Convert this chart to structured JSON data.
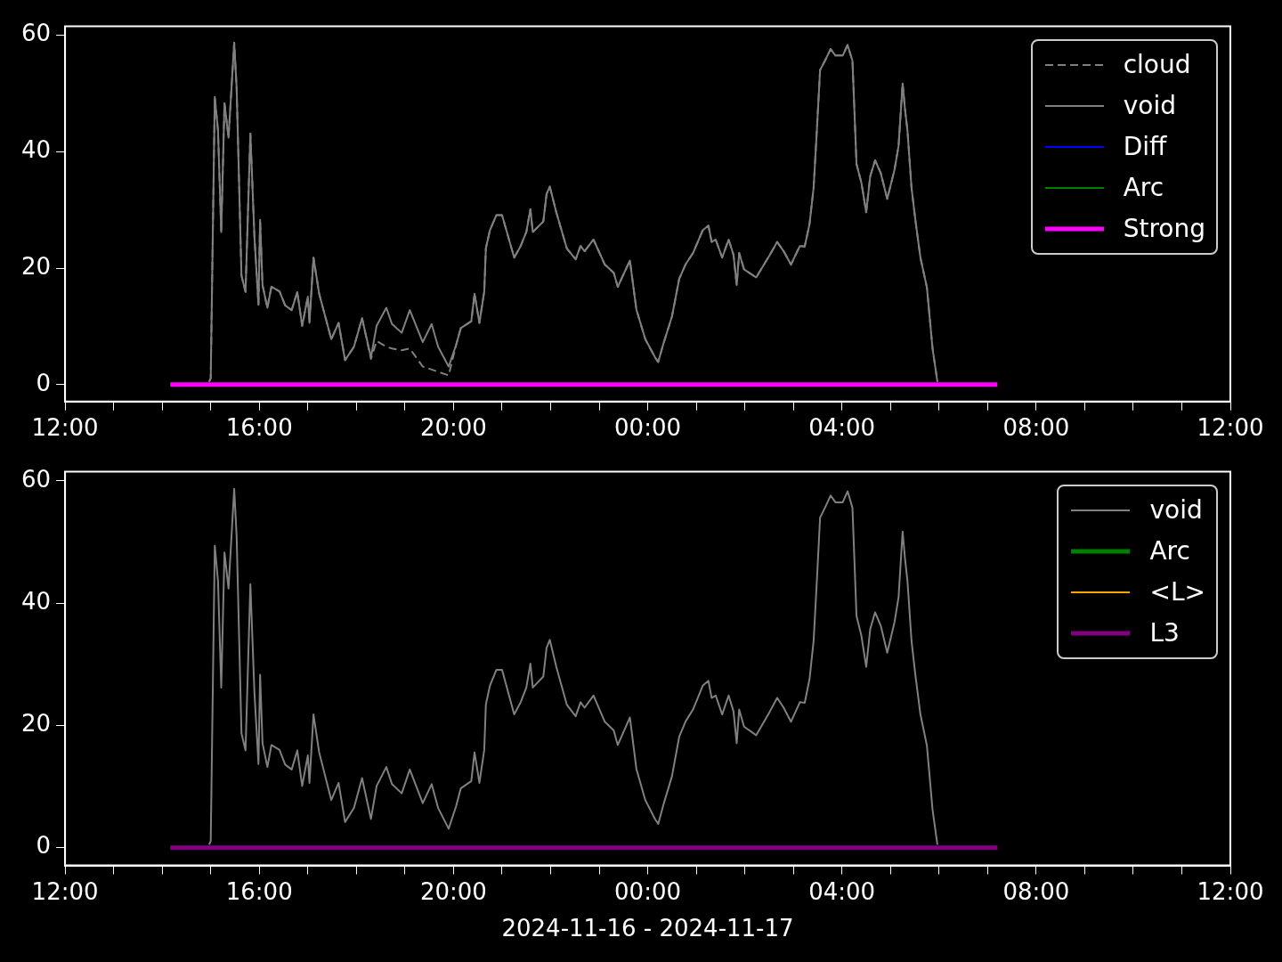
{
  "chart_data": [
    {
      "type": "line",
      "legend": "top right",
      "grid": false,
      "marker": "none",
      "xlim": [
        "2024-11-16T12:00",
        "2024-11-17T12:00"
      ],
      "xticks": [
        {
          "value": "2024-11-16T12:00",
          "label": "12:00"
        },
        {
          "value": "2024-11-16T13:00",
          "label": null
        },
        {
          "value": "2024-11-16T14:00",
          "label": null
        },
        {
          "value": "2024-11-16T15:00",
          "label": null
        },
        {
          "value": "2024-11-16T16:00",
          "label": "16:00"
        },
        {
          "value": "2024-11-16T17:00",
          "label": null
        },
        {
          "value": "2024-11-16T18:00",
          "label": null
        },
        {
          "value": "2024-11-16T19:00",
          "label": null
        },
        {
          "value": "2024-11-16T20:00",
          "label": "20:00"
        },
        {
          "value": "2024-11-16T21:00",
          "label": null
        },
        {
          "value": "2024-11-16T22:00",
          "label": null
        },
        {
          "value": "2024-11-16T23:00",
          "label": null
        },
        {
          "value": "2024-11-17T00:00",
          "label": "00:00"
        },
        {
          "value": "2024-11-17T01:00",
          "label": null
        },
        {
          "value": "2024-11-17T02:00",
          "label": null
        },
        {
          "value": "2024-11-17T03:00",
          "label": null
        },
        {
          "value": "2024-11-17T04:00",
          "label": "04:00"
        },
        {
          "value": "2024-11-17T05:00",
          "label": null
        },
        {
          "value": "2024-11-17T06:00",
          "label": null
        },
        {
          "value": "2024-11-17T07:00",
          "label": null
        },
        {
          "value": "2024-11-17T08:00",
          "label": "08:00"
        },
        {
          "value": "2024-11-17T09:00",
          "label": null
        },
        {
          "value": "2024-11-17T10:00",
          "label": null
        },
        {
          "value": "2024-11-17T11:00",
          "label": null
        },
        {
          "value": "2024-11-17T12:00",
          "label": "12:00"
        }
      ],
      "ylim": [
        -2.9,
        61.5
      ],
      "yticks": [
        0,
        20,
        40,
        60
      ],
      "x": [
        "2024-11-16T14:58",
        "2024-11-16T15:00",
        "2024-11-16T15:05",
        "2024-11-16T15:09",
        "2024-11-16T15:13",
        "2024-11-16T15:17",
        "2024-11-16T15:22",
        "2024-11-16T15:29",
        "2024-11-16T15:32",
        "2024-11-16T15:38",
        "2024-11-16T15:43",
        "2024-11-16T15:49",
        "2024-11-16T15:54",
        "2024-11-16T15:59",
        "2024-11-16T16:01",
        "2024-11-16T16:04",
        "2024-11-16T16:10",
        "2024-11-16T16:15",
        "2024-11-16T16:25",
        "2024-11-16T16:32",
        "2024-11-16T16:40",
        "2024-11-16T16:47",
        "2024-11-16T16:53",
        "2024-11-16T17:00",
        "2024-11-16T17:02",
        "2024-11-16T17:07",
        "2024-11-16T17:14",
        "2024-11-16T17:29",
        "2024-11-16T17:38",
        "2024-11-16T17:46",
        "2024-11-16T17:57",
        "2024-11-16T18:07",
        "2024-11-16T18:18",
        "2024-11-16T18:25",
        "2024-11-16T18:37",
        "2024-11-16T18:44",
        "2024-11-16T18:56",
        "2024-11-16T19:06",
        "2024-11-16T19:22",
        "2024-11-16T19:33",
        "2024-11-16T19:41",
        "2024-11-16T19:54",
        "2024-11-16T20:03",
        "2024-11-16T20:09",
        "2024-11-16T20:22",
        "2024-11-16T20:26",
        "2024-11-16T20:32",
        "2024-11-16T20:38",
        "2024-11-16T20:40",
        "2024-11-16T20:45",
        "2024-11-16T20:53",
        "2024-11-16T21:00",
        "2024-11-16T21:15",
        "2024-11-16T21:23",
        "2024-11-16T21:30",
        "2024-11-16T21:35",
        "2024-11-16T21:38",
        "2024-11-16T21:51",
        "2024-11-16T21:55",
        "2024-11-16T21:59",
        "2024-11-16T22:07",
        "2024-11-16T22:20",
        "2024-11-16T22:31",
        "2024-11-16T22:37",
        "2024-11-16T22:42",
        "2024-11-16T22:53",
        "2024-11-16T23:07",
        "2024-11-16T23:18",
        "2024-11-16T23:23",
        "2024-11-16T23:31",
        "2024-11-16T23:38",
        "2024-11-16T23:46",
        "2024-11-16T23:57",
        "2024-11-17T00:09",
        "2024-11-17T00:13",
        "2024-11-17T00:20",
        "2024-11-17T00:30",
        "2024-11-17T00:39",
        "2024-11-17T00:47",
        "2024-11-17T00:56",
        "2024-11-17T01:08",
        "2024-11-17T01:15",
        "2024-11-17T01:19",
        "2024-11-17T01:24",
        "2024-11-17T01:32",
        "2024-11-17T01:40",
        "2024-11-17T01:46",
        "2024-11-17T01:50",
        "2024-11-17T01:53",
        "2024-11-17T01:59",
        "2024-11-17T02:14",
        "2024-11-17T02:31",
        "2024-11-17T02:40",
        "2024-11-17T02:48",
        "2024-11-17T02:57",
        "2024-11-17T03:08",
        "2024-11-17T03:14",
        "2024-11-17T03:20",
        "2024-11-17T03:25",
        "2024-11-17T03:29",
        "2024-11-17T03:33",
        "2024-11-17T03:39",
        "2024-11-17T03:46",
        "2024-11-17T03:52",
        "2024-11-17T04:01",
        "2024-11-17T04:07",
        "2024-11-17T04:13",
        "2024-11-17T04:18",
        "2024-11-17T04:24",
        "2024-11-17T04:30",
        "2024-11-17T04:35",
        "2024-11-17T04:41",
        "2024-11-17T04:48",
        "2024-11-17T04:56",
        "2024-11-17T05:05",
        "2024-11-17T05:10",
        "2024-11-17T05:15",
        "2024-11-17T05:18",
        "2024-11-17T05:21",
        "2024-11-17T05:26",
        "2024-11-17T05:31",
        "2024-11-17T05:37",
        "2024-11-17T05:45",
        "2024-11-17T05:52",
        "2024-11-17T05:58"
      ],
      "series": [
        {
          "name": "cloud",
          "color": "#808080",
          "line_style": "dashed",
          "values": [
            0.5,
            1.1,
            49.4,
            43.6,
            26.2,
            48.3,
            42.4,
            58.7,
            51,
            18.7,
            15.9,
            43.1,
            25.4,
            13.7,
            28.3,
            17.1,
            13.2,
            16.8,
            16,
            13.6,
            12.8,
            15.9,
            10.1,
            15.1,
            10.6,
            21.8,
            15.6,
            7.8,
            10.6,
            4.2,
            6.5,
            11.4,
            4.4,
            7.5,
            6.5,
            6.2,
            5.9,
            6.2,
            3.1,
            2.6,
            2.2,
            1.6,
            6.7,
            9.7,
            10.9,
            15.6,
            10.6,
            16,
            23.4,
            26.5,
            29.1,
            29.1,
            21.8,
            23.8,
            26.2,
            30.1,
            26.2,
            28,
            32.7,
            34,
            29.6,
            23.4,
            21.5,
            23.8,
            22.9,
            24.9,
            20.6,
            19.2,
            16.8,
            19.2,
            21.3,
            12.9,
            7.8,
            4.7,
            3.9,
            7.3,
            11.7,
            18.2,
            20.7,
            22.6,
            26.5,
            27.3,
            24.5,
            24.9,
            21.8,
            24.9,
            22.3,
            17.1,
            22.6,
            19.8,
            18.4,
            22.3,
            24.5,
            22.9,
            20.6,
            23.8,
            23.7,
            27.6,
            33.8,
            43.6,
            54,
            55.6,
            57.6,
            56.5,
            56.5,
            58.3,
            55.6,
            37.9,
            34.7,
            29.6,
            35.8,
            38.5,
            36.3,
            31.9,
            36.9,
            41,
            51.7,
            47.2,
            43.6,
            33.8,
            28,
            21.8,
            16.7,
            6.2,
            0.5
          ]
        },
        {
          "name": "void",
          "color": "#808080",
          "values": [
            0.5,
            1.1,
            49.4,
            43.6,
            26.2,
            48.3,
            42.4,
            58.7,
            51,
            18.7,
            15.9,
            43.1,
            25.4,
            13.7,
            28.3,
            17.1,
            13.2,
            16.8,
            16,
            13.6,
            12.8,
            15.9,
            10.1,
            15.1,
            10.6,
            21.8,
            15.6,
            7.8,
            10.6,
            4.2,
            6.5,
            11.4,
            4.7,
            10.1,
            13.2,
            10.4,
            8.9,
            12.8,
            7.3,
            10.4,
            6.5,
            3.1,
            6.7,
            9.7,
            10.9,
            15.6,
            10.6,
            16,
            23.4,
            26.5,
            29.1,
            29.1,
            21.8,
            23.8,
            26.2,
            30.1,
            26.2,
            28,
            32.7,
            34,
            29.6,
            23.4,
            21.5,
            23.8,
            22.9,
            24.9,
            20.6,
            19.2,
            16.8,
            19.2,
            21.3,
            12.9,
            7.8,
            4.7,
            3.9,
            7.3,
            11.7,
            18.2,
            20.7,
            22.6,
            26.5,
            27.3,
            24.5,
            24.9,
            21.8,
            24.9,
            22.3,
            17.1,
            22.6,
            19.8,
            18.4,
            22.3,
            24.5,
            22.9,
            20.6,
            23.8,
            23.7,
            27.6,
            33.8,
            43.6,
            54,
            55.6,
            57.6,
            56.5,
            56.5,
            58.3,
            55.6,
            37.9,
            34.7,
            29.6,
            35.8,
            38.5,
            36.3,
            31.9,
            36.9,
            41,
            51.7,
            47.2,
            43.6,
            33.8,
            28,
            21.8,
            16.7,
            6.2,
            0.5
          ]
        },
        {
          "name": "Diff",
          "color": "#0000ff",
          "values": [
            null,
            null,
            null,
            null,
            null,
            null,
            null,
            null,
            null,
            null,
            null,
            null,
            null,
            null,
            null,
            null,
            null,
            null,
            null,
            null,
            null,
            null,
            null,
            null,
            null,
            null,
            null,
            null,
            null,
            null,
            null,
            null,
            null,
            null,
            null,
            null,
            null,
            null,
            null,
            null,
            null,
            null,
            null,
            null,
            null,
            null,
            null,
            null,
            null,
            null,
            null,
            null,
            null,
            null,
            null,
            null,
            null,
            null,
            null,
            null,
            null,
            null,
            null,
            null,
            null,
            null,
            null,
            null,
            null,
            null,
            null,
            null,
            null,
            null,
            null,
            null,
            null,
            null,
            null,
            null,
            null,
            null,
            null,
            null,
            null,
            null,
            null,
            null,
            null,
            null,
            null,
            null,
            null,
            null,
            null,
            null,
            null,
            null,
            null,
            null,
            null,
            null,
            null,
            null,
            null,
            null,
            null,
            null,
            null,
            null,
            null,
            null,
            null,
            null,
            null,
            null,
            null,
            null,
            null,
            null,
            null,
            null,
            null,
            null,
            null
          ]
        },
        {
          "name": "Arc",
          "color": "#008000",
          "values": [
            null,
            null,
            null,
            null,
            null,
            null,
            null,
            null,
            null,
            null,
            null,
            null,
            null,
            null,
            null,
            null,
            null,
            null,
            null,
            null,
            null,
            null,
            null,
            null,
            null,
            null,
            null,
            null,
            null,
            null,
            null,
            null,
            null,
            null,
            null,
            null,
            null,
            null,
            null,
            null,
            null,
            null,
            null,
            null,
            null,
            null,
            null,
            null,
            null,
            null,
            null,
            null,
            null,
            null,
            null,
            null,
            null,
            null,
            null,
            null,
            null,
            null,
            null,
            null,
            null,
            null,
            null,
            null,
            null,
            null,
            null,
            null,
            null,
            null,
            null,
            null,
            null,
            null,
            null,
            null,
            null,
            null,
            null,
            null,
            null,
            null,
            null,
            null,
            null,
            null,
            null,
            null,
            null,
            null,
            null,
            null,
            null,
            null,
            null,
            null,
            null,
            null,
            null,
            null,
            null,
            null,
            null,
            null,
            null,
            null,
            null,
            null,
            null,
            null,
            null,
            null,
            null,
            null,
            null,
            null,
            null,
            null,
            null,
            null,
            null
          ]
        },
        {
          "name": "Strong",
          "color": "#ff00ff",
          "x": [
            "2024-11-16T14:10",
            "2024-11-17T07:12"
          ],
          "values": [
            0,
            0
          ]
        }
      ]
    },
    {
      "type": "line",
      "legend": "top right",
      "grid": false,
      "marker": "none",
      "xlabel": "2024-11-16 - 2024-11-17",
      "xlim": [
        "2024-11-16T12:00",
        "2024-11-17T12:00"
      ],
      "xticks": [
        {
          "value": "2024-11-16T12:00",
          "label": "12:00"
        },
        {
          "value": "2024-11-16T13:00",
          "label": null
        },
        {
          "value": "2024-11-16T14:00",
          "label": null
        },
        {
          "value": "2024-11-16T15:00",
          "label": null
        },
        {
          "value": "2024-11-16T16:00",
          "label": "16:00"
        },
        {
          "value": "2024-11-16T17:00",
          "label": null
        },
        {
          "value": "2024-11-16T18:00",
          "label": null
        },
        {
          "value": "2024-11-16T19:00",
          "label": null
        },
        {
          "value": "2024-11-16T20:00",
          "label": "20:00"
        },
        {
          "value": "2024-11-16T21:00",
          "label": null
        },
        {
          "value": "2024-11-16T22:00",
          "label": null
        },
        {
          "value": "2024-11-16T23:00",
          "label": null
        },
        {
          "value": "2024-11-17T00:00",
          "label": "00:00"
        },
        {
          "value": "2024-11-17T01:00",
          "label": null
        },
        {
          "value": "2024-11-17T02:00",
          "label": null
        },
        {
          "value": "2024-11-17T03:00",
          "label": null
        },
        {
          "value": "2024-11-17T04:00",
          "label": "04:00"
        },
        {
          "value": "2024-11-17T05:00",
          "label": null
        },
        {
          "value": "2024-11-17T06:00",
          "label": null
        },
        {
          "value": "2024-11-17T07:00",
          "label": null
        },
        {
          "value": "2024-11-17T08:00",
          "label": "08:00"
        },
        {
          "value": "2024-11-17T09:00",
          "label": null
        },
        {
          "value": "2024-11-17T10:00",
          "label": null
        },
        {
          "value": "2024-11-17T11:00",
          "label": null
        },
        {
          "value": "2024-11-17T12:00",
          "label": "12:00"
        }
      ],
      "ylim": [
        -2.9,
        61.5
      ],
      "yticks": [
        0,
        20,
        40,
        60
      ],
      "x": [
        "2024-11-16T14:58",
        "2024-11-16T15:00",
        "2024-11-16T15:05",
        "2024-11-16T15:09",
        "2024-11-16T15:13",
        "2024-11-16T15:17",
        "2024-11-16T15:22",
        "2024-11-16T15:29",
        "2024-11-16T15:32",
        "2024-11-16T15:38",
        "2024-11-16T15:43",
        "2024-11-16T15:49",
        "2024-11-16T15:54",
        "2024-11-16T15:59",
        "2024-11-16T16:01",
        "2024-11-16T16:04",
        "2024-11-16T16:10",
        "2024-11-16T16:15",
        "2024-11-16T16:25",
        "2024-11-16T16:32",
        "2024-11-16T16:40",
        "2024-11-16T16:47",
        "2024-11-16T16:53",
        "2024-11-16T17:00",
        "2024-11-16T17:02",
        "2024-11-16T17:07",
        "2024-11-16T17:14",
        "2024-11-16T17:29",
        "2024-11-16T17:38",
        "2024-11-16T17:46",
        "2024-11-16T17:57",
        "2024-11-16T18:07",
        "2024-11-16T18:18",
        "2024-11-16T18:25",
        "2024-11-16T18:37",
        "2024-11-16T18:44",
        "2024-11-16T18:56",
        "2024-11-16T19:06",
        "2024-11-16T19:22",
        "2024-11-16T19:33",
        "2024-11-16T19:41",
        "2024-11-16T19:54",
        "2024-11-16T20:03",
        "2024-11-16T20:09",
        "2024-11-16T20:22",
        "2024-11-16T20:26",
        "2024-11-16T20:32",
        "2024-11-16T20:38",
        "2024-11-16T20:40",
        "2024-11-16T20:45",
        "2024-11-16T20:53",
        "2024-11-16T21:00",
        "2024-11-16T21:15",
        "2024-11-16T21:23",
        "2024-11-16T21:30",
        "2024-11-16T21:35",
        "2024-11-16T21:38",
        "2024-11-16T21:51",
        "2024-11-16T21:55",
        "2024-11-16T21:59",
        "2024-11-16T22:07",
        "2024-11-16T22:20",
        "2024-11-16T22:31",
        "2024-11-16T22:37",
        "2024-11-16T22:42",
        "2024-11-16T22:53",
        "2024-11-16T23:07",
        "2024-11-16T23:18",
        "2024-11-16T23:23",
        "2024-11-16T23:31",
        "2024-11-16T23:38",
        "2024-11-16T23:46",
        "2024-11-16T23:57",
        "2024-11-17T00:09",
        "2024-11-17T00:13",
        "2024-11-17T00:20",
        "2024-11-17T00:30",
        "2024-11-17T00:39",
        "2024-11-17T00:47",
        "2024-11-17T00:56",
        "2024-11-17T01:08",
        "2024-11-17T01:15",
        "2024-11-17T01:19",
        "2024-11-17T01:24",
        "2024-11-17T01:32",
        "2024-11-17T01:40",
        "2024-11-17T01:46",
        "2024-11-17T01:50",
        "2024-11-17T01:53",
        "2024-11-17T01:59",
        "2024-11-17T02:14",
        "2024-11-17T02:31",
        "2024-11-17T02:40",
        "2024-11-17T02:48",
        "2024-11-17T02:57",
        "2024-11-17T03:08",
        "2024-11-17T03:14",
        "2024-11-17T03:20",
        "2024-11-17T03:25",
        "2024-11-17T03:29",
        "2024-11-17T03:33",
        "2024-11-17T03:39",
        "2024-11-17T03:46",
        "2024-11-17T03:52",
        "2024-11-17T04:01",
        "2024-11-17T04:07",
        "2024-11-17T04:13",
        "2024-11-17T04:18",
        "2024-11-17T04:24",
        "2024-11-17T04:30",
        "2024-11-17T04:35",
        "2024-11-17T04:41",
        "2024-11-17T04:48",
        "2024-11-17T04:56",
        "2024-11-17T05:05",
        "2024-11-17T05:10",
        "2024-11-17T05:15",
        "2024-11-17T05:18",
        "2024-11-17T05:21",
        "2024-11-17T05:26",
        "2024-11-17T05:31",
        "2024-11-17T05:37",
        "2024-11-17T05:45",
        "2024-11-17T05:52",
        "2024-11-17T05:58"
      ],
      "series": [
        {
          "name": "void",
          "color": "#808080",
          "values": [
            0.5,
            1.1,
            49.4,
            43.6,
            26.2,
            48.3,
            42.4,
            58.7,
            51,
            18.7,
            15.9,
            43.1,
            25.4,
            13.7,
            28.3,
            17.1,
            13.2,
            16.8,
            16,
            13.6,
            12.8,
            15.9,
            10.1,
            15.1,
            10.6,
            21.8,
            15.6,
            7.8,
            10.6,
            4.2,
            6.5,
            11.4,
            4.7,
            10.1,
            13.2,
            10.4,
            8.9,
            12.8,
            7.3,
            10.4,
            6.5,
            3.1,
            6.7,
            9.7,
            10.9,
            15.6,
            10.6,
            16,
            23.4,
            26.5,
            29.1,
            29.1,
            21.8,
            23.8,
            26.2,
            30.1,
            26.2,
            28,
            32.7,
            34,
            29.6,
            23.4,
            21.5,
            23.8,
            22.9,
            24.9,
            20.6,
            19.2,
            16.8,
            19.2,
            21.3,
            12.9,
            7.8,
            4.7,
            3.9,
            7.3,
            11.7,
            18.2,
            20.7,
            22.6,
            26.5,
            27.3,
            24.5,
            24.9,
            21.8,
            24.9,
            22.3,
            17.1,
            22.6,
            19.8,
            18.4,
            22.3,
            24.5,
            22.9,
            20.6,
            23.8,
            23.7,
            27.6,
            33.8,
            43.6,
            54,
            55.6,
            57.6,
            56.5,
            56.5,
            58.3,
            55.6,
            37.9,
            34.7,
            29.6,
            35.8,
            38.5,
            36.3,
            31.9,
            36.9,
            41,
            51.7,
            47.2,
            43.6,
            33.8,
            28,
            21.8,
            16.7,
            6.2,
            0.5
          ]
        },
        {
          "name": "Arc",
          "color": "#008000",
          "values": [
            null,
            null,
            null,
            null,
            null,
            null,
            null,
            null,
            null,
            null,
            null,
            null,
            null,
            null,
            null,
            null,
            null,
            null,
            null,
            null,
            null,
            null,
            null,
            null,
            null,
            null,
            null,
            null,
            null,
            null,
            null,
            null,
            null,
            null,
            null,
            null,
            null,
            null,
            null,
            null,
            null,
            null,
            null,
            null,
            null,
            null,
            null,
            null,
            null,
            null,
            null,
            null,
            null,
            null,
            null,
            null,
            null,
            null,
            null,
            null,
            null,
            null,
            null,
            null,
            null,
            null,
            null,
            null,
            null,
            null,
            null,
            null,
            null,
            null,
            null,
            null,
            null,
            null,
            null,
            null,
            null,
            null,
            null,
            null,
            null,
            null,
            null,
            null,
            null,
            null,
            null,
            null,
            null,
            null,
            null,
            null,
            null,
            null,
            null,
            null,
            null,
            null,
            null,
            null,
            null,
            null,
            null,
            null,
            null,
            null,
            null,
            null,
            null,
            null,
            null,
            null,
            null,
            null,
            null,
            null,
            null,
            null,
            null,
            null,
            null
          ]
        },
        {
          "name": "<L>",
          "color": "#ffa500",
          "values": [
            null,
            null,
            null,
            null,
            null,
            null,
            null,
            null,
            null,
            null,
            null,
            null,
            null,
            null,
            null,
            null,
            null,
            null,
            null,
            null,
            null,
            null,
            null,
            null,
            null,
            null,
            null,
            null,
            null,
            null,
            null,
            null,
            null,
            null,
            null,
            null,
            null,
            null,
            null,
            null,
            null,
            null,
            null,
            null,
            null,
            null,
            null,
            null,
            null,
            null,
            null,
            null,
            null,
            null,
            null,
            null,
            null,
            null,
            null,
            null,
            null,
            null,
            null,
            null,
            null,
            null,
            null,
            null,
            null,
            null,
            null,
            null,
            null,
            null,
            null,
            null,
            null,
            null,
            null,
            null,
            null,
            null,
            null,
            null,
            null,
            null,
            null,
            null,
            null,
            null,
            null,
            null,
            null,
            null,
            null,
            null,
            null,
            null,
            null,
            null,
            null,
            null,
            null,
            null,
            null,
            null,
            null,
            null,
            null,
            null,
            null,
            null,
            null,
            null,
            null,
            null,
            null,
            null,
            null,
            null,
            null,
            null,
            null,
            null,
            null
          ]
        },
        {
          "name": "L3",
          "color": "#800080",
          "x": [
            "2024-11-16T14:10",
            "2024-11-17T07:12"
          ],
          "values": [
            0,
            0
          ]
        }
      ]
    }
  ]
}
